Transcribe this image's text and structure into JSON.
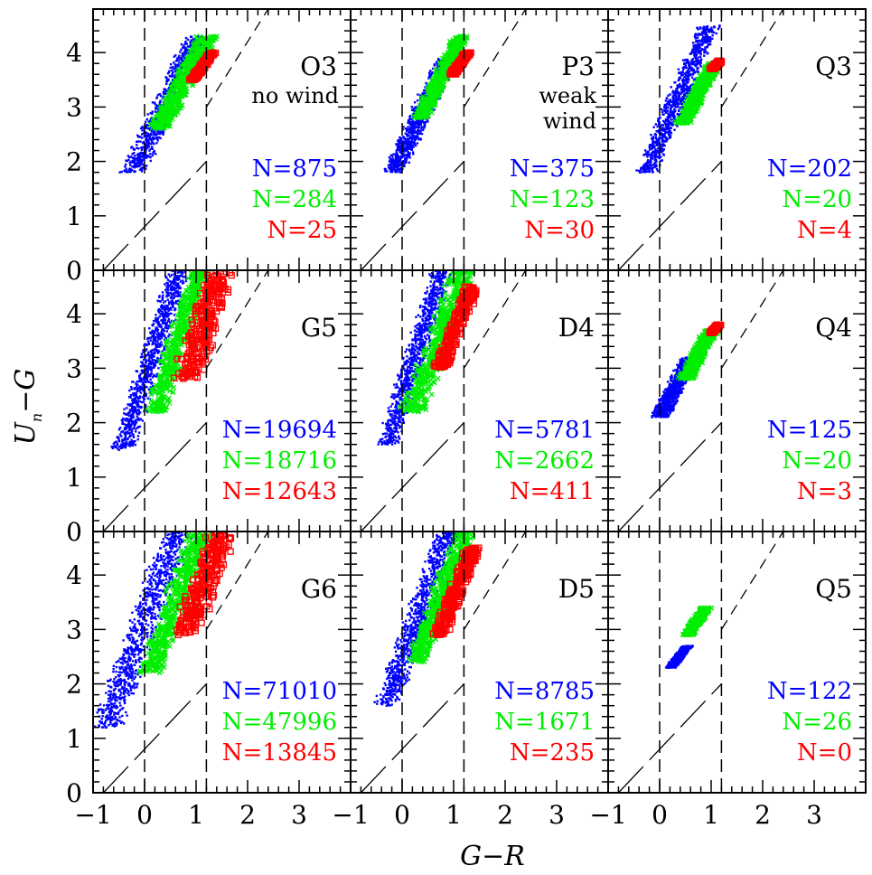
{
  "figure": {
    "xlabel": "G−R",
    "ylabel_main": "U",
    "ylabel_sub": "n",
    "ylabel_rest": "−G",
    "colors": {
      "blue": "#0000ff",
      "green": "#00ee00",
      "red": "#ff0000",
      "axis": "#000000"
    }
  },
  "chart_data": {
    "type": "scatter",
    "xlim": [
      -1,
      4
    ],
    "ylim": [
      0,
      4.8
    ],
    "x_ticks": [
      "−1",
      "0",
      "1",
      "2",
      "3"
    ],
    "y_ticks": [
      "0",
      "1",
      "2",
      "3",
      "4"
    ],
    "xlabel": "G−R",
    "ylabel": "Un−G",
    "guide_lines": {
      "vertical_dashed_x": [
        0.0,
        1.2
      ],
      "diagonal_long_dash": [
        [
          -0.8,
          0.0
        ],
        [
          1.2,
          2.0
        ]
      ],
      "upper_diagonal_dashed": [
        [
          1.2,
          3.0
        ],
        [
          2.4,
          4.8
        ]
      ]
    },
    "panels": [
      {
        "id": "O3",
        "label": "O3",
        "note": [
          "no wind"
        ],
        "counts": {
          "blue": "N=875",
          "green": "N=284",
          "red": "N=25"
        },
        "series": [
          {
            "color": "blue",
            "marker": "dot",
            "x_range": [
              0.0,
              0.8
            ],
            "y_range": [
              1.8,
              4.3
            ],
            "slope": 2.0
          },
          {
            "color": "green",
            "marker": "x",
            "x_range": [
              0.4,
              1.1
            ],
            "y_range": [
              2.6,
              4.3
            ],
            "slope": 1.8
          },
          {
            "color": "red",
            "marker": "square",
            "x_range": [
              1.0,
              1.25
            ],
            "y_range": [
              3.5,
              4.0
            ],
            "slope": 1.3
          }
        ]
      },
      {
        "id": "P3",
        "label": "P3",
        "note": [
          "weak",
          "wind"
        ],
        "counts": {
          "blue": "N=375",
          "green": "N=123",
          "red": "N=30"
        },
        "series": [
          {
            "color": "blue",
            "marker": "dot",
            "x_range": [
              0.0,
              0.7
            ],
            "y_range": [
              1.8,
              3.9
            ],
            "slope": 2.0
          },
          {
            "color": "green",
            "marker": "x",
            "x_range": [
              0.5,
              1.0
            ],
            "y_range": [
              2.8,
              4.3
            ],
            "slope": 1.9
          },
          {
            "color": "red",
            "marker": "square",
            "x_range": [
              1.0,
              1.25
            ],
            "y_range": [
              3.6,
              4.0
            ],
            "slope": 1.3
          }
        ]
      },
      {
        "id": "Q3",
        "label": "Q3",
        "note": [],
        "counts": {
          "blue": "N=202",
          "green": "N=20",
          "red": "N=4"
        },
        "series": [
          {
            "color": "blue",
            "marker": "dot",
            "x_range": [
              0.0,
              0.7
            ],
            "y_range": [
              1.8,
              4.5
            ],
            "slope": 2.2
          },
          {
            "color": "green",
            "marker": "x",
            "x_range": [
              0.5,
              1.0
            ],
            "y_range": [
              2.7,
              3.8
            ],
            "slope": 1.8
          },
          {
            "color": "red",
            "marker": "square",
            "x_range": [
              1.0,
              1.2
            ],
            "y_range": [
              3.7,
              3.85
            ],
            "slope": 1.0
          }
        ]
      },
      {
        "id": "G5",
        "label": "G5",
        "note": [],
        "counts": {
          "blue": "N=19694",
          "green": "N=18716",
          "red": "N=12643"
        },
        "series": [
          {
            "color": "blue",
            "marker": "dot",
            "x_range": [
              -0.25,
              0.5
            ],
            "y_range": [
              1.5,
              4.8
            ],
            "slope": 3.0
          },
          {
            "color": "green",
            "marker": "x",
            "x_range": [
              0.3,
              1.0
            ],
            "y_range": [
              2.2,
              4.8
            ],
            "slope": 3.0
          },
          {
            "color": "red",
            "marker": "square",
            "x_range": [
              0.7,
              1.6
            ],
            "y_range": [
              2.8,
              4.8
            ],
            "slope": 3.0
          }
        ]
      },
      {
        "id": "D4",
        "label": "D4",
        "note": [],
        "counts": {
          "blue": "N=5781",
          "green": "N=2662",
          "red": "N=411"
        },
        "series": [
          {
            "color": "blue",
            "marker": "dot",
            "x_range": [
              -0.1,
              0.6
            ],
            "y_range": [
              1.6,
              4.8
            ],
            "slope": 3.0
          },
          {
            "color": "green",
            "marker": "x",
            "x_range": [
              0.3,
              1.1
            ],
            "y_range": [
              2.2,
              4.8
            ],
            "slope": 2.6
          },
          {
            "color": "red",
            "marker": "square",
            "x_range": [
              0.8,
              1.3
            ],
            "y_range": [
              3.0,
              4.5
            ],
            "slope": 2.4
          }
        ]
      },
      {
        "id": "Q4",
        "label": "Q4",
        "note": [],
        "counts": {
          "blue": "N=125",
          "green": "N=20",
          "red": "N=3"
        },
        "series": [
          {
            "color": "blue",
            "marker": "dot",
            "x_range": [
              0.0,
              0.6
            ],
            "y_range": [
              2.1,
              3.2
            ],
            "slope": 1.8
          },
          {
            "color": "green",
            "marker": "x",
            "x_range": [
              0.5,
              1.0
            ],
            "y_range": [
              2.8,
              3.7
            ],
            "slope": 1.8
          },
          {
            "color": "red",
            "marker": "square",
            "x_range": [
              1.0,
              1.15
            ],
            "y_range": [
              3.65,
              3.8
            ],
            "slope": 1.0
          }
        ]
      },
      {
        "id": "G6",
        "label": "G6",
        "note": [],
        "counts": {
          "blue": "N=71010",
          "green": "N=47996",
          "red": "N=13845"
        },
        "series": [
          {
            "color": "blue",
            "marker": "dot",
            "x_range": [
              -0.55,
              0.45
            ],
            "y_range": [
              1.2,
              4.8
            ],
            "slope": 2.6
          },
          {
            "color": "green",
            "marker": "x",
            "x_range": [
              0.2,
              1.0
            ],
            "y_range": [
              2.2,
              4.8
            ],
            "slope": 2.6
          },
          {
            "color": "red",
            "marker": "square",
            "x_range": [
              0.7,
              1.6
            ],
            "y_range": [
              2.9,
              4.8
            ],
            "slope": 2.6
          }
        ]
      },
      {
        "id": "D5",
        "label": "D5",
        "note": [],
        "counts": {
          "blue": "N=8785",
          "green": "N=1671",
          "red": "N=235"
        },
        "series": [
          {
            "color": "blue",
            "marker": "dot",
            "x_range": [
              -0.1,
              0.7
            ],
            "y_range": [
              1.6,
              4.8
            ],
            "slope": 2.6
          },
          {
            "color": "green",
            "marker": "x",
            "x_range": [
              0.4,
              1.1
            ],
            "y_range": [
              2.4,
              4.8
            ],
            "slope": 2.6
          },
          {
            "color": "red",
            "marker": "square",
            "x_range": [
              0.8,
              1.3
            ],
            "y_range": [
              2.9,
              4.5
            ],
            "slope": 2.4
          }
        ]
      },
      {
        "id": "Q5",
        "label": "Q5",
        "note": [],
        "counts": {
          "blue": "N=122",
          "green": "N=26",
          "red": "N=0"
        },
        "series": [
          {
            "color": "blue",
            "marker": "dot",
            "x_range": [
              0.2,
              0.55
            ],
            "y_range": [
              2.3,
              2.7
            ],
            "slope": 1.2
          },
          {
            "color": "green",
            "marker": "x",
            "x_range": [
              0.55,
              0.9
            ],
            "y_range": [
              2.9,
              3.4
            ],
            "slope": 1.4
          }
        ]
      }
    ]
  }
}
